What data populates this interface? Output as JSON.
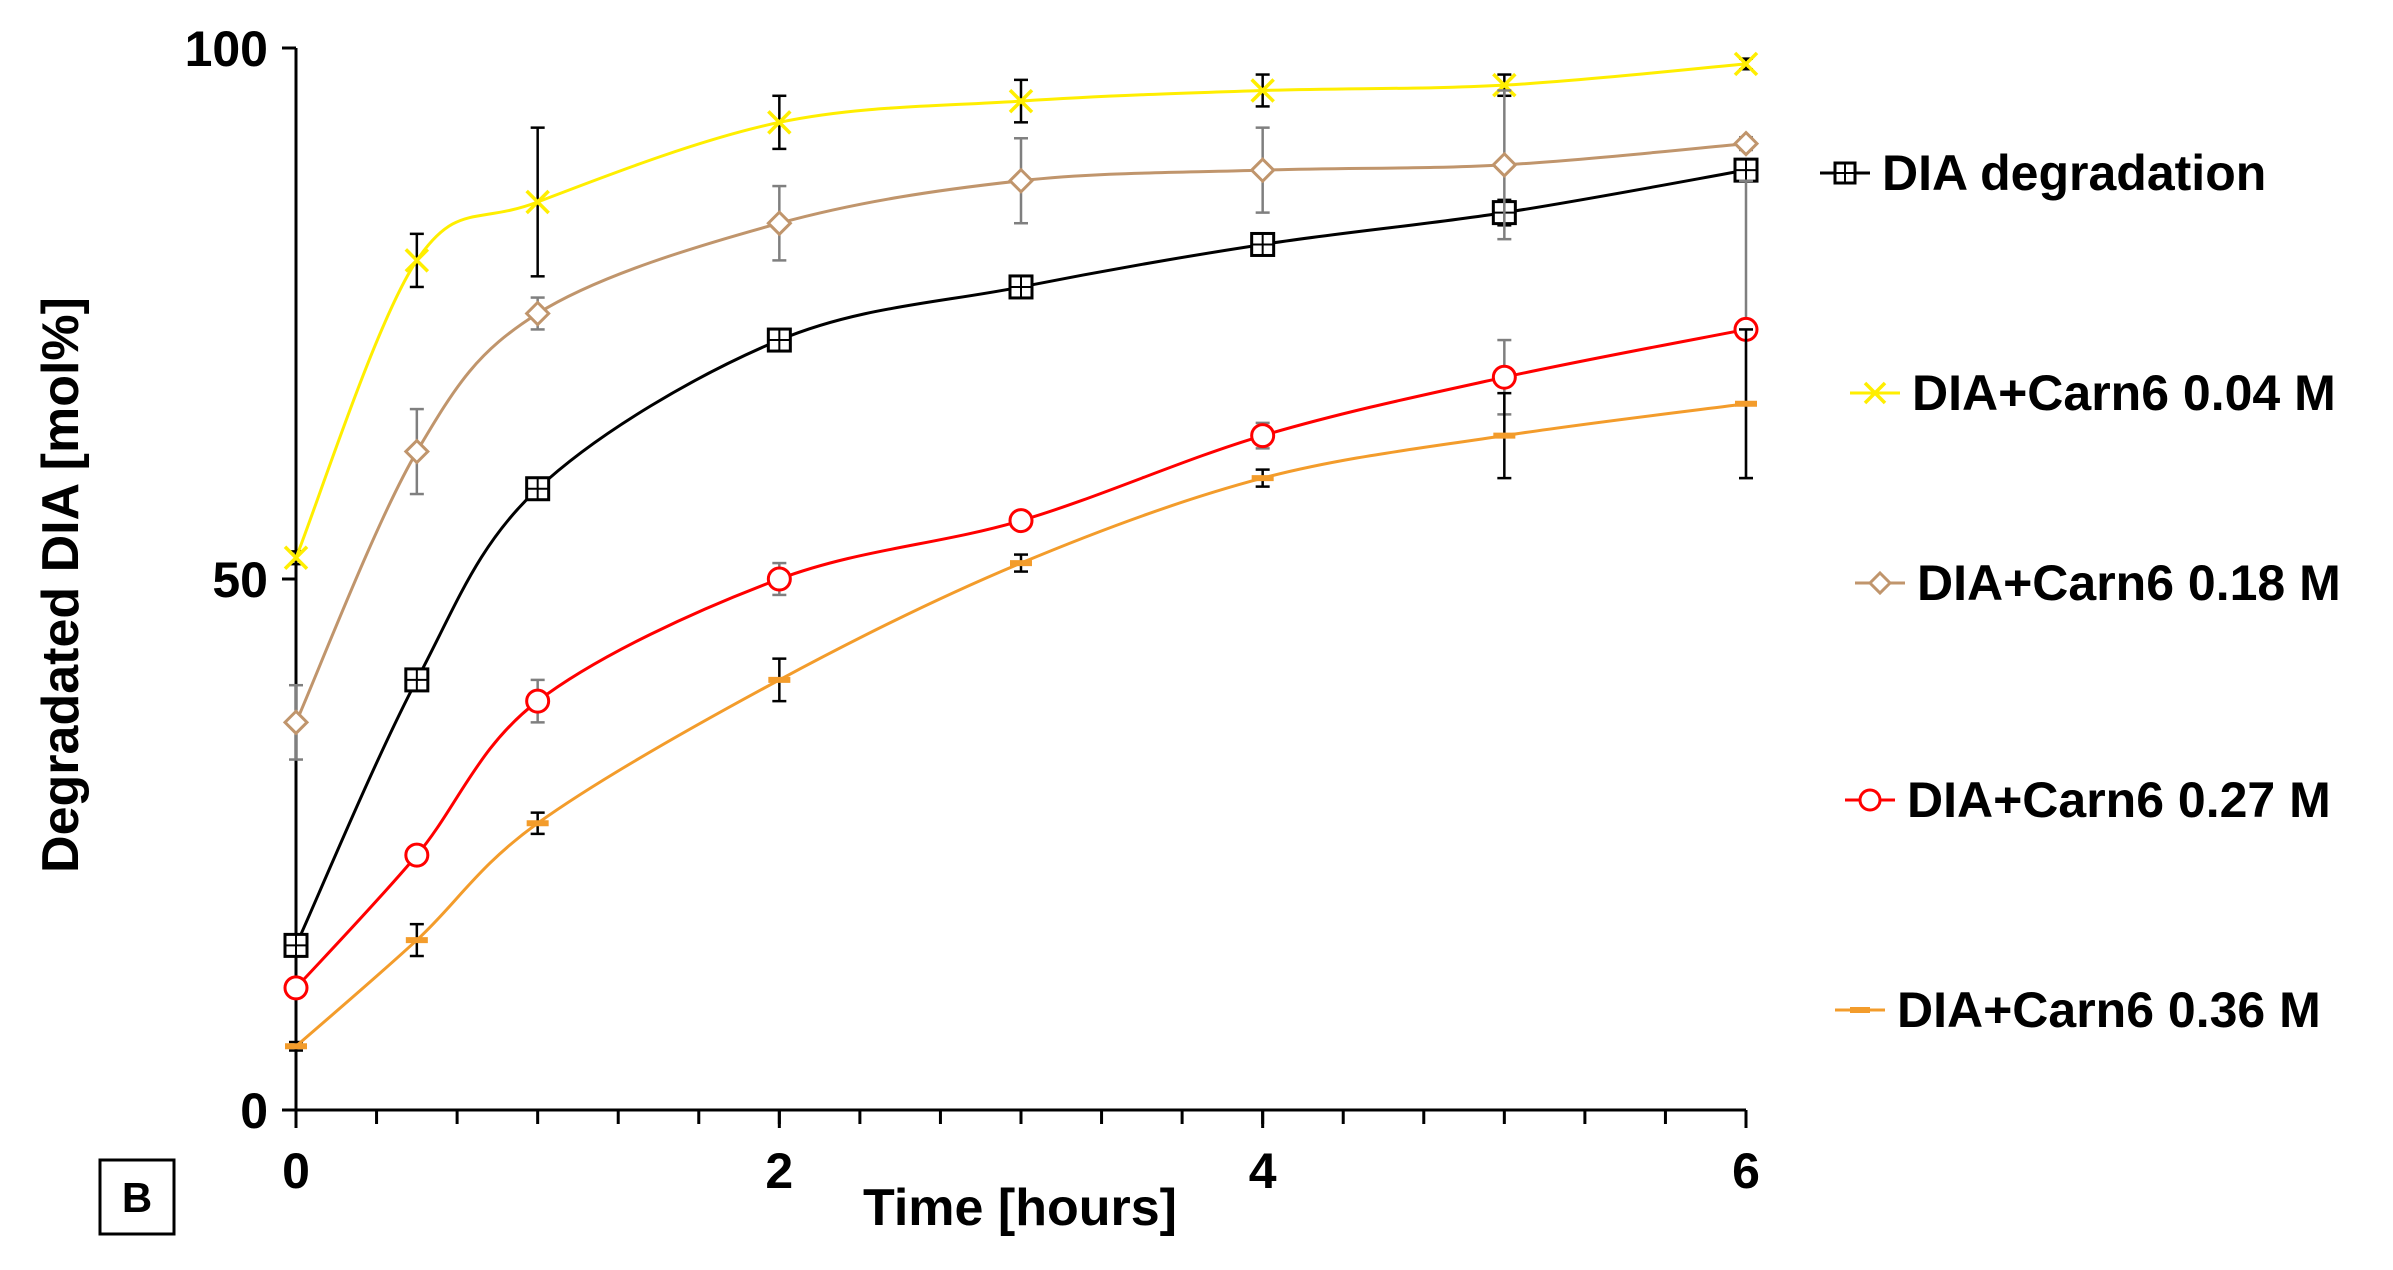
{
  "chart_data": {
    "type": "line",
    "panel_label": "B",
    "xlabel": "Time [hours]",
    "ylabel": "Degradated DIA [mol%]",
    "xlim": [
      0,
      6
    ],
    "ylim": [
      0,
      100
    ],
    "x_ticks": [
      "0",
      "2",
      "4",
      "6"
    ],
    "y_ticks": [
      "0",
      "50",
      "100"
    ],
    "x": [
      0,
      0.5,
      1,
      2,
      3,
      4,
      5,
      6
    ],
    "legend_position": "right",
    "series": [
      {
        "name": "DIA degradation",
        "color": "#000000",
        "errorbar_color": "#000000",
        "marker": "square-cross",
        "values": [
          15.5,
          40.5,
          58.5,
          72.5,
          77.5,
          81.5,
          84.5,
          88.5
        ],
        "errors": [
          0.8,
          0.8,
          1.0,
          1.0,
          1.0,
          1.0,
          1.2,
          1.0
        ]
      },
      {
        "name": "DIA+Carn6 0.04 M",
        "color": "#ffee00",
        "errorbar_color": "#000000",
        "marker": "x",
        "values": [
          52,
          80,
          85.5,
          93,
          95,
          96,
          96.5,
          98.5
        ],
        "errors": [
          0.6,
          2.5,
          7.0,
          2.5,
          2.0,
          1.5,
          1.0,
          0.5
        ]
      },
      {
        "name": "DIA+Carn6 0.18 M",
        "color": "#c0956c",
        "errorbar_color": "#7f7f7f",
        "marker": "diamond",
        "values": [
          36.5,
          62,
          75,
          83.5,
          87.5,
          88.5,
          89,
          91
        ],
        "errors": [
          3.5,
          4.0,
          1.5,
          3.5,
          4.0,
          4.0,
          7.0,
          0.6
        ]
      },
      {
        "name": "DIA+Carn6 0.27 M",
        "color": "#ff0000",
        "errorbar_color": "#7f7f7f",
        "marker": "circle",
        "values": [
          11.5,
          24,
          38.5,
          50,
          55.5,
          63.5,
          69,
          73.5
        ],
        "errors": [
          0.6,
          0.8,
          2.0,
          1.5,
          0.8,
          1.2,
          3.5,
          14.0
        ]
      },
      {
        "name": "DIA+Carn6 0.36 M",
        "color": "#f39c2b",
        "errorbar_color": "#000000",
        "marker": "dash",
        "values": [
          6,
          16,
          27,
          40.5,
          51.5,
          59.5,
          63.5,
          66.5
        ],
        "errors": [
          0.4,
          1.5,
          1.0,
          2.0,
          0.8,
          0.8,
          4.0,
          7.0
        ]
      }
    ]
  }
}
